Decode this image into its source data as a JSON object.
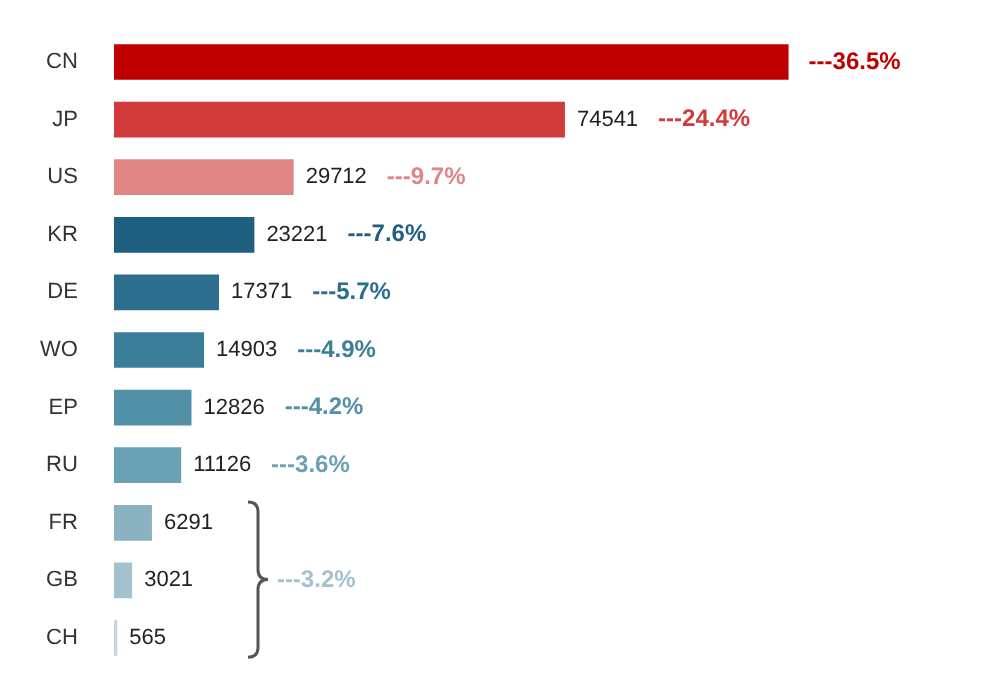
{
  "chart_data": {
    "type": "bar",
    "orientation": "horizontal",
    "categories": [
      "CN",
      "JP",
      "US",
      "KR",
      "DE",
      "WO",
      "EP",
      "RU",
      "FR",
      "GB",
      "CH"
    ],
    "values": [
      111500,
      74541,
      29712,
      23221,
      17371,
      14903,
      12826,
      11126,
      6291,
      3021,
      565
    ],
    "value_labels": [
      null,
      "74541",
      "29712",
      "23221",
      "17371",
      "14903",
      "12826",
      "11126",
      "6291",
      "3021",
      "565"
    ],
    "colors": [
      "#c00000",
      "#d03a3a",
      "#e08585",
      "#1f5f7f",
      "#2b6e8e",
      "#3a7e99",
      "#5290a8",
      "#6ba1b5",
      "#8ab2c1",
      "#a3c2cd",
      "#c3d6de"
    ],
    "annotations": [
      "---36.5%",
      "---24.4%",
      "---9.7%",
      "---7.6%",
      "---5.7%",
      "---4.9%",
      "---4.2%",
      "---3.6%",
      "---3.2%"
    ],
    "legend": false,
    "grid": false
  }
}
